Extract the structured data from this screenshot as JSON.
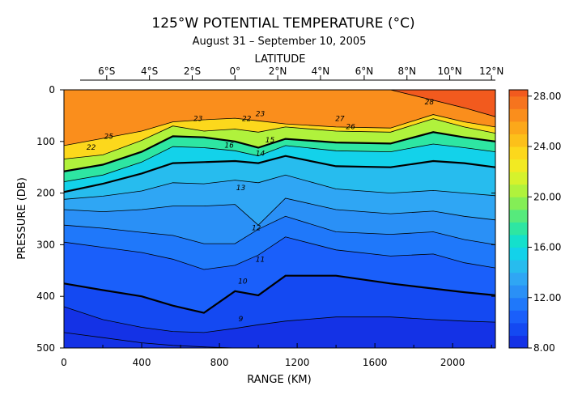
{
  "header": {
    "title": "125°W POTENTIAL TEMPERATURE (°C)",
    "subtitle": "August 31 – September 10, 2005"
  },
  "chart_data": {
    "type": "heatmap",
    "title": "125°W POTENTIAL TEMPERATURE (°C)",
    "subtitle": "August 31 – September 10, 2005",
    "xlabel": "RANGE (KM)",
    "ylabel": "PRESSURE (DB)",
    "top_axis_label": "LATITUDE",
    "xlim": [
      0,
      2220
    ],
    "ylim": [
      0,
      500
    ],
    "y_inverted": true,
    "x_ticks": [
      0,
      400,
      800,
      1200,
      1600,
      2000
    ],
    "x_tick_labels": [
      "0",
      "400",
      "800",
      "1200",
      "1600",
      "2000"
    ],
    "y_ticks": [
      0,
      100,
      200,
      300,
      400,
      500
    ],
    "y_tick_labels": [
      "0",
      "100",
      "200",
      "300",
      "400",
      "500"
    ],
    "lat_ticks": [
      {
        "label": "6°S",
        "km": 220
      },
      {
        "label": "4°S",
        "km": 440
      },
      {
        "label": "2°S",
        "km": 660
      },
      {
        "label": "0°",
        "km": 880
      },
      {
        "label": "2°N",
        "km": 1100
      },
      {
        "label": "4°N",
        "km": 1320
      },
      {
        "label": "6°N",
        "km": 1545
      },
      {
        "label": "8°N",
        "km": 1765
      },
      {
        "label": "10°N",
        "km": 1985
      },
      {
        "label": "12°N",
        "km": 2200
      }
    ],
    "colorbar": {
      "min": 8,
      "max": 28.5,
      "tick_values": [
        8,
        12,
        16,
        20,
        24,
        28
      ],
      "tick_labels": [
        "8.00",
        "12.00",
        "16.00",
        "20.00",
        "24.00",
        "28.00"
      ]
    },
    "colors": {
      "c8": "#1432e6",
      "c9": "#1449f2",
      "c10": "#1a5ffa",
      "c11": "#1f78fa",
      "c12": "#2a90f6",
      "c13": "#2fa6f4",
      "c14": "#27bcee",
      "c15": "#13d2ea",
      "c16": "#14e0cc",
      "c17": "#2ee6a2",
      "c18": "#56ea7c",
      "c19": "#84ee56",
      "c20": "#b0f23c",
      "c21": "#d6f22c",
      "c22": "#f2ea22",
      "c23": "#fcd81c",
      "c24": "#fcc01a",
      "c25": "#fca81a",
      "c26": "#fa8e1c",
      "c27": "#f6741e",
      "c28": "#f25a1e"
    },
    "series": [
      {
        "name": "8",
        "depth": [
          470,
          480,
          490,
          495,
          498,
          500,
          500,
          500,
          500,
          500,
          500,
          500,
          500
        ]
      },
      {
        "name": "9",
        "depth": [
          420,
          445,
          460,
          468,
          470,
          462,
          455,
          448,
          440,
          440,
          445,
          448,
          450
        ]
      },
      {
        "name": "10",
        "depth": [
          375,
          388,
          400,
          418,
          432,
          390,
          398,
          360,
          360,
          375,
          385,
          392,
          398
        ]
      },
      {
        "name": "11",
        "depth": [
          295,
          305,
          315,
          328,
          348,
          340,
          320,
          285,
          310,
          322,
          318,
          335,
          345
        ]
      },
      {
        "name": "12",
        "depth": [
          262,
          268,
          276,
          282,
          298,
          298,
          270,
          245,
          275,
          280,
          275,
          290,
          300
        ]
      },
      {
        "name": "13",
        "depth": [
          232,
          236,
          232,
          225,
          225,
          222,
          262,
          210,
          232,
          240,
          235,
          245,
          252
        ]
      },
      {
        "name": "14",
        "depth": [
          212,
          206,
          196,
          180,
          182,
          175,
          180,
          165,
          192,
          200,
          195,
          200,
          205
        ]
      },
      {
        "name": "15",
        "depth": [
          198,
          182,
          162,
          142,
          140,
          138,
          142,
          128,
          148,
          150,
          138,
          142,
          150
        ]
      },
      {
        "name": "17",
        "depth": [
          178,
          165,
          140,
          110,
          112,
          118,
          128,
          108,
          118,
          120,
          105,
          112,
          120
        ]
      },
      {
        "name": "20",
        "depth": [
          158,
          145,
          120,
          90,
          92,
          100,
          112,
          95,
          102,
          104,
          82,
          92,
          100
        ]
      },
      {
        "name": "23",
        "depth": [
          134,
          126,
          98,
          70,
          80,
          76,
          82,
          72,
          80,
          82,
          56,
          72,
          84
        ]
      },
      {
        "name": "26",
        "depth": [
          108,
          94,
          80,
          62,
          58,
          55,
          60,
          66,
          72,
          74,
          48,
          62,
          72
        ]
      },
      {
        "name": "28",
        "depth": [
          0,
          0,
          0,
          0,
          0,
          0,
          0,
          0,
          0,
          0,
          20,
          35,
          52
        ]
      }
    ],
    "series_x_km": [
      0,
      200,
      400,
      560,
      720,
      880,
      1000,
      1140,
      1400,
      1680,
      1900,
      2060,
      2220
    ],
    "contour_labels": [
      {
        "text": "28",
        "km": 1880,
        "db": 28
      },
      {
        "text": "27",
        "km": 1420,
        "db": 60
      },
      {
        "text": "26",
        "km": 1475,
        "db": 76
      },
      {
        "text": "25",
        "km": 230,
        "db": 95
      },
      {
        "text": "23",
        "km": 1010,
        "db": 51
      },
      {
        "text": "22",
        "km": 140,
        "db": 116
      },
      {
        "text": "23",
        "km": 690,
        "db": 60
      },
      {
        "text": "22",
        "km": 940,
        "db": 60
      },
      {
        "text": "16",
        "km": 850,
        "db": 112
      },
      {
        "text": "15",
        "km": 1060,
        "db": 102
      },
      {
        "text": "14",
        "km": 1010,
        "db": 128
      },
      {
        "text": "13",
        "km": 910,
        "db": 194
      },
      {
        "text": "12",
        "km": 990,
        "db": 272
      },
      {
        "text": "11",
        "km": 1010,
        "db": 333
      },
      {
        "text": "10",
        "km": 920,
        "db": 375
      },
      {
        "text": "9",
        "km": 910,
        "db": 448
      }
    ]
  }
}
